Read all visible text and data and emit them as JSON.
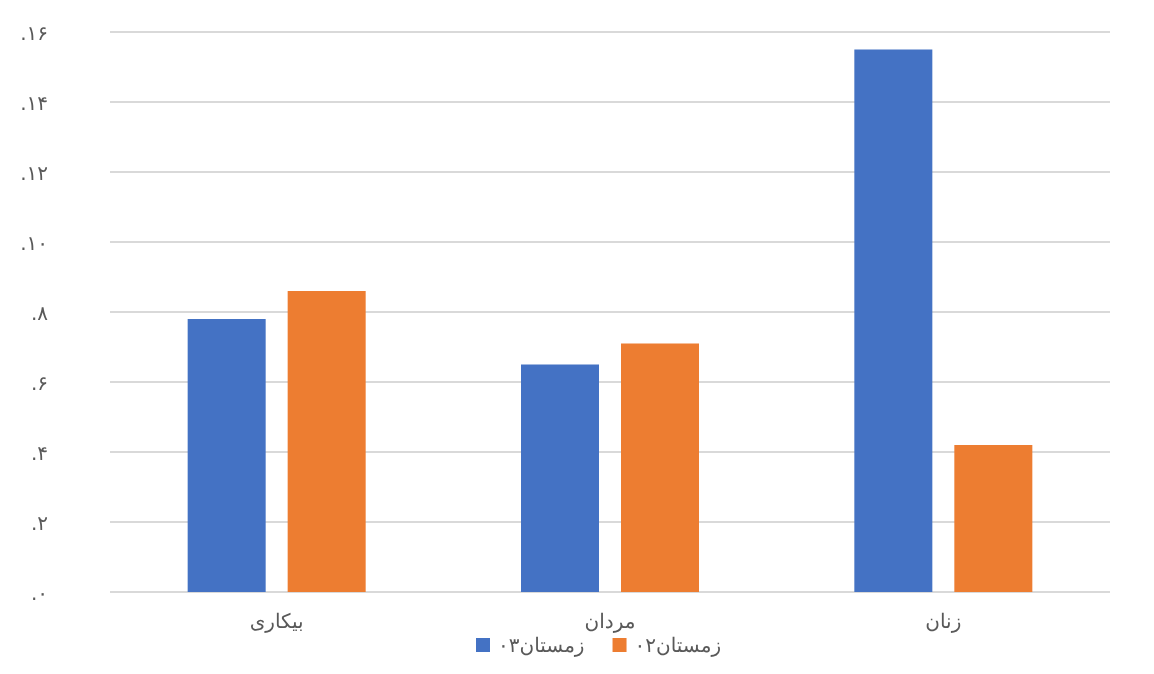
{
  "chart_data": {
    "type": "bar",
    "categories": [
      "بیکاری",
      "مردان",
      "زنان"
    ],
    "series": [
      {
        "name": "زمستان۰۳",
        "color": "#4472c4",
        "values": [
          7.8,
          6.5,
          15.5
        ]
      },
      {
        "name": "زمستان۰۲",
        "color": "#ed7d31",
        "values": [
          8.6,
          7.1,
          4.2
        ]
      }
    ],
    "ylim": [
      0,
      16
    ],
    "yticks": [
      {
        "value": 0,
        "label": "۰."
      },
      {
        "value": 2,
        "label": "۲."
      },
      {
        "value": 4,
        "label": "۴."
      },
      {
        "value": 6,
        "label": "۶."
      },
      {
        "value": 8,
        "label": "۸."
      },
      {
        "value": 10,
        "label": "۱۰."
      },
      {
        "value": 12,
        "label": "۱۲."
      },
      {
        "value": 14,
        "label": "۱۴."
      },
      {
        "value": 16,
        "label": "۱۶."
      }
    ],
    "grid": "y",
    "legend": "bottom"
  }
}
